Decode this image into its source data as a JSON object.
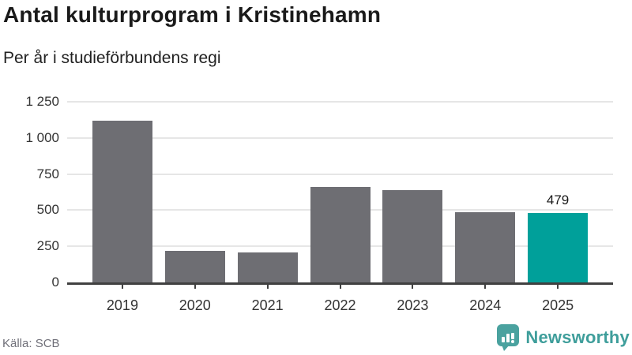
{
  "header": {
    "title": "Antal kulturprogram i Kristinehamn",
    "subtitle": "Per år i studieförbundens regi"
  },
  "chart_data": {
    "type": "bar",
    "categories": [
      "2019",
      "2020",
      "2021",
      "2022",
      "2023",
      "2024",
      "2025"
    ],
    "values": [
      1120,
      220,
      210,
      660,
      640,
      485,
      479
    ],
    "title": "Antal kulturprogram i Kristinehamn",
    "subtitle": "Per år i studieförbundens regi",
    "xlabel": "",
    "ylabel": "",
    "ylim": [
      0,
      1250
    ],
    "yticks": [
      0,
      250,
      500,
      750,
      1000,
      1250
    ],
    "ytick_labels": [
      "0",
      "250",
      "500",
      "750",
      "1 000",
      "1 250"
    ],
    "grid": true,
    "legend": "none",
    "highlight_index": 6,
    "value_labels": {
      "6": "479"
    },
    "bar_color": "#6e6e73",
    "highlight_color": "#00a09a"
  },
  "footer": {
    "source": "Källa: SCB",
    "brand": "Newsworthy"
  },
  "colors": {
    "background": "#ffffff",
    "gridline": "#e6e6e6",
    "axis": "#404040",
    "title_text": "#1a1a1a",
    "tick_text": "#333333",
    "source_text": "#6f6f78",
    "brand_teal": "#3f9e9b"
  },
  "icons": {
    "newsworthy_logo": "bar-chart-pin-icon"
  }
}
